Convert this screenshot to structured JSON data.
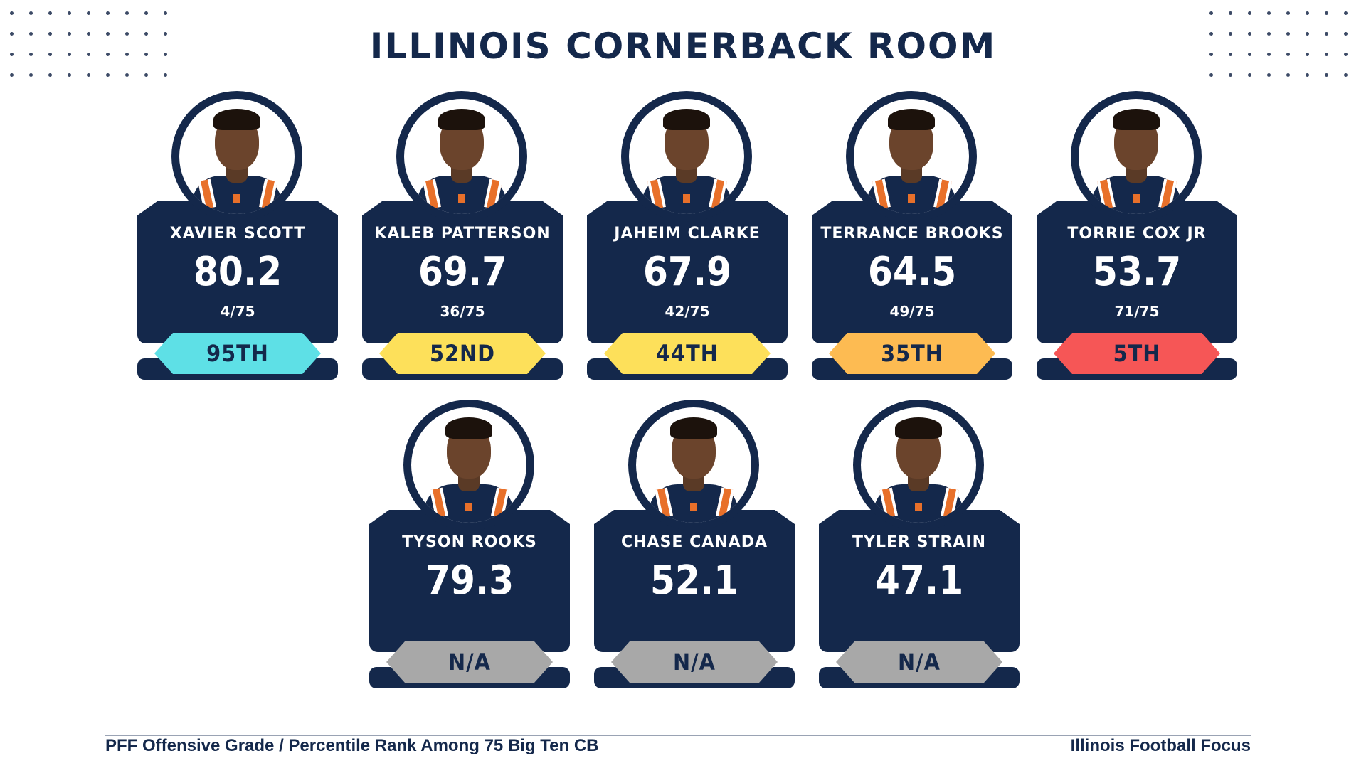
{
  "title": "ILLINOIS CORNERBACK ROOM",
  "players": [
    {
      "name": "XAVIER SCOTT",
      "grade": "80.2",
      "rank": "4/75",
      "percentile": "95TH",
      "color": "#5ee0e6"
    },
    {
      "name": "KALEB PATTERSON",
      "grade": "69.7",
      "rank": "36/75",
      "percentile": "52ND",
      "color": "#fde05a"
    },
    {
      "name": "JAHEIM CLARKE",
      "grade": "67.9",
      "rank": "42/75",
      "percentile": "44TH",
      "color": "#fde05a"
    },
    {
      "name": "TERRANCE BROOKS",
      "grade": "64.5",
      "rank": "49/75",
      "percentile": "35TH",
      "color": "#fdbb52"
    },
    {
      "name": "TORRIE COX JR",
      "grade": "53.7",
      "rank": "71/75",
      "percentile": "5TH",
      "color": "#f65656"
    },
    {
      "name": "TYSON ROOKS",
      "grade": "79.3",
      "rank": "",
      "percentile": "N/A",
      "color": "#a8a8a8"
    },
    {
      "name": "CHASE CANADA",
      "grade": "52.1",
      "rank": "",
      "percentile": "N/A",
      "color": "#a8a8a8"
    },
    {
      "name": "TYLER STRAIN",
      "grade": "47.1",
      "rank": "",
      "percentile": "N/A",
      "color": "#a8a8a8"
    }
  ],
  "footer": {
    "left": "PFF Offensive Grade / Percentile Rank Among 75 Big Ten CB",
    "right": "Illinois Football Focus"
  }
}
